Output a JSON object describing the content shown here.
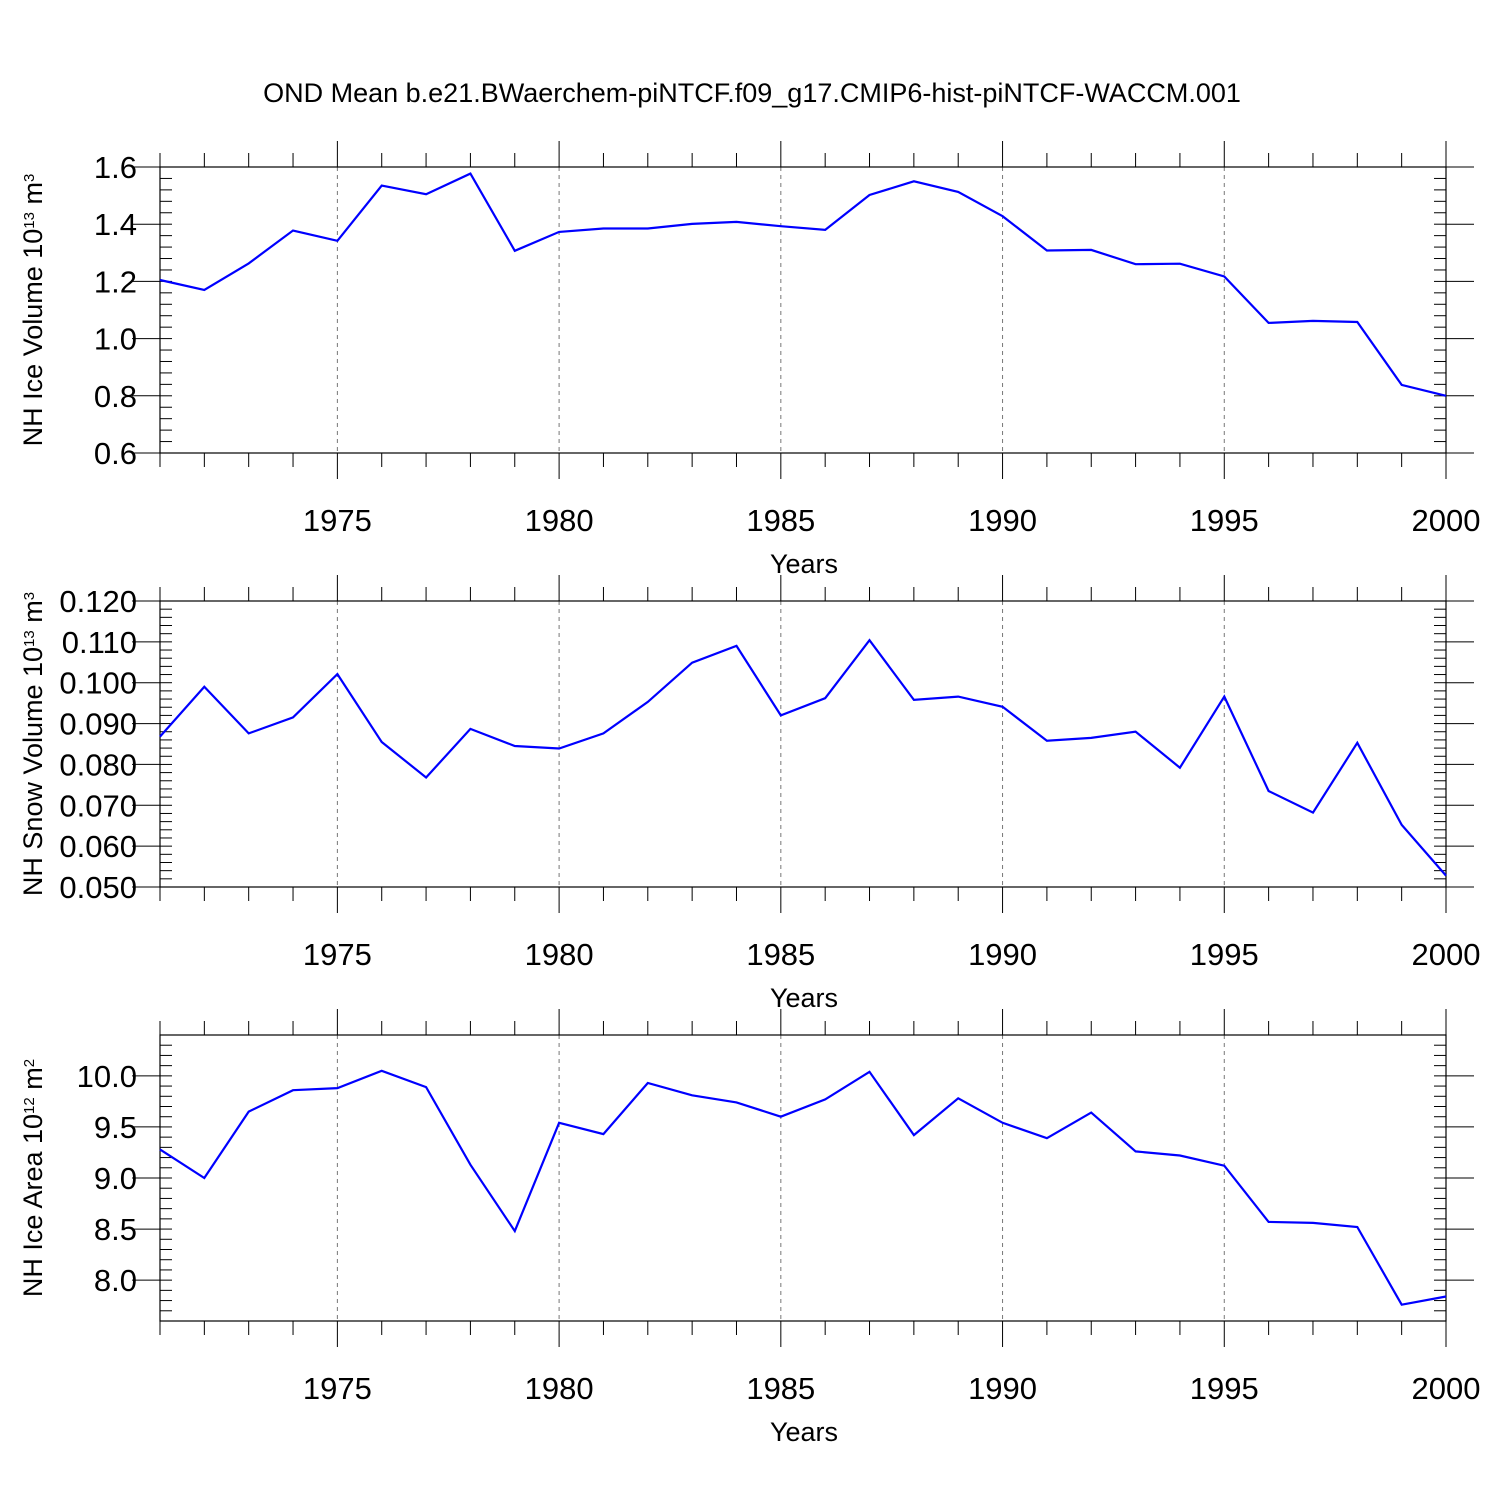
{
  "title": "OND Mean b.e21.BWaerchem-piNTCF.f09_g17.CMIP6-hist-piNTCF-WACCM.001",
  "colors": {
    "line": "#0000ff",
    "axis": "#000000",
    "grid": "#777777"
  },
  "chart_data": [
    {
      "type": "line",
      "panel": "ice-volume",
      "ylabel": {
        "main": "NH Ice Volume 10",
        "exp": "13",
        "unit": " m",
        "unit_exp": "3"
      },
      "xlabel": "Years",
      "xlim": [
        1971,
        2000
      ],
      "ylim": [
        0.6,
        1.6
      ],
      "yticks": [
        0.6,
        0.8,
        1.0,
        1.2,
        1.4,
        1.6
      ],
      "ytick_labels": [
        "0.6",
        "0.8",
        "1.0",
        "1.2",
        "1.4",
        "1.6"
      ],
      "yminor_step": 0.04,
      "xticks": [
        1975,
        1980,
        1985,
        1990,
        1995,
        2000
      ],
      "xtick_labels": [
        "1975",
        "1980",
        "1985",
        "1990",
        "1995",
        "2000"
      ],
      "grid_x": [
        1975,
        1980,
        1985,
        1990,
        1995
      ],
      "x": [
        1971,
        1972,
        1973,
        1974,
        1975,
        1976,
        1977,
        1978,
        1979,
        1980,
        1981,
        1982,
        1983,
        1984,
        1985,
        1986,
        1987,
        1988,
        1989,
        1990,
        1991,
        1992,
        1993,
        1994,
        1995,
        1996,
        1997,
        1998,
        1999,
        2000
      ],
      "y": [
        1.205,
        1.17,
        1.263,
        1.378,
        1.342,
        1.535,
        1.505,
        1.577,
        1.307,
        1.373,
        1.385,
        1.385,
        1.401,
        1.408,
        1.393,
        1.38,
        1.502,
        1.55,
        1.513,
        1.428,
        1.308,
        1.31,
        1.26,
        1.262,
        1.217,
        1.055,
        1.062,
        1.058,
        0.838,
        0.8
      ]
    },
    {
      "type": "line",
      "panel": "snow-volume",
      "ylabel": {
        "main": "NH Snow Volume 10",
        "exp": "13",
        "unit": " m",
        "unit_exp": "3"
      },
      "xlabel": "Years",
      "xlim": [
        1971,
        2000
      ],
      "ylim": [
        0.05,
        0.12
      ],
      "yticks": [
        0.05,
        0.06,
        0.07,
        0.08,
        0.09,
        0.1,
        0.11,
        0.12
      ],
      "ytick_labels": [
        "0.050",
        "0.060",
        "0.070",
        "0.080",
        "0.090",
        "0.100",
        "0.110",
        "0.120"
      ],
      "yminor_step": 0.002,
      "xticks": [
        1975,
        1980,
        1985,
        1990,
        1995,
        2000
      ],
      "xtick_labels": [
        "1975",
        "1980",
        "1985",
        "1990",
        "1995",
        "2000"
      ],
      "grid_x": [
        1975,
        1980,
        1985,
        1990,
        1995
      ],
      "x": [
        1971,
        1972,
        1973,
        1974,
        1975,
        1976,
        1977,
        1978,
        1979,
        1980,
        1981,
        1982,
        1983,
        1984,
        1985,
        1986,
        1987,
        1988,
        1989,
        1990,
        1991,
        1992,
        1993,
        1994,
        1995,
        1996,
        1997,
        1998,
        1999,
        2000
      ],
      "y": [
        0.0868,
        0.099,
        0.0876,
        0.0915,
        0.1021,
        0.0855,
        0.0768,
        0.0887,
        0.0845,
        0.0839,
        0.0876,
        0.0953,
        0.1049,
        0.109,
        0.092,
        0.0962,
        0.1104,
        0.0958,
        0.0966,
        0.0941,
        0.0858,
        0.0865,
        0.088,
        0.0792,
        0.0966,
        0.0735,
        0.0682,
        0.0853,
        0.0652,
        0.0528
      ]
    },
    {
      "type": "line",
      "panel": "ice-area",
      "ylabel": {
        "main": "NH Ice Area 10",
        "exp": "12",
        "unit": " m",
        "unit_exp": "2"
      },
      "xlabel": "Years",
      "xlim": [
        1971,
        2000
      ],
      "ylim": [
        7.6,
        10.4
      ],
      "yticks": [
        8.0,
        8.5,
        9.0,
        9.5,
        10.0
      ],
      "ytick_labels": [
        "8.0",
        "8.5",
        "9.0",
        "9.5",
        "10.0"
      ],
      "yminor_step": 0.1,
      "xticks": [
        1975,
        1980,
        1985,
        1990,
        1995,
        2000
      ],
      "xtick_labels": [
        "1975",
        "1980",
        "1985",
        "1990",
        "1995",
        "2000"
      ],
      "grid_x": [
        1975,
        1980,
        1985,
        1990,
        1995
      ],
      "x": [
        1971,
        1972,
        1973,
        1974,
        1975,
        1976,
        1977,
        1978,
        1979,
        1980,
        1981,
        1982,
        1983,
        1984,
        1985,
        1986,
        1987,
        1988,
        1989,
        1990,
        1991,
        1992,
        1993,
        1994,
        1995,
        1996,
        1997,
        1998,
        1999,
        2000
      ],
      "y": [
        9.28,
        9.0,
        9.65,
        9.86,
        9.88,
        10.05,
        9.89,
        9.13,
        8.48,
        9.54,
        9.43,
        9.93,
        9.81,
        9.74,
        9.6,
        9.77,
        10.04,
        9.42,
        9.78,
        9.54,
        9.39,
        9.64,
        9.26,
        9.22,
        9.12,
        8.57,
        8.56,
        8.52,
        7.76,
        7.84
      ]
    }
  ]
}
